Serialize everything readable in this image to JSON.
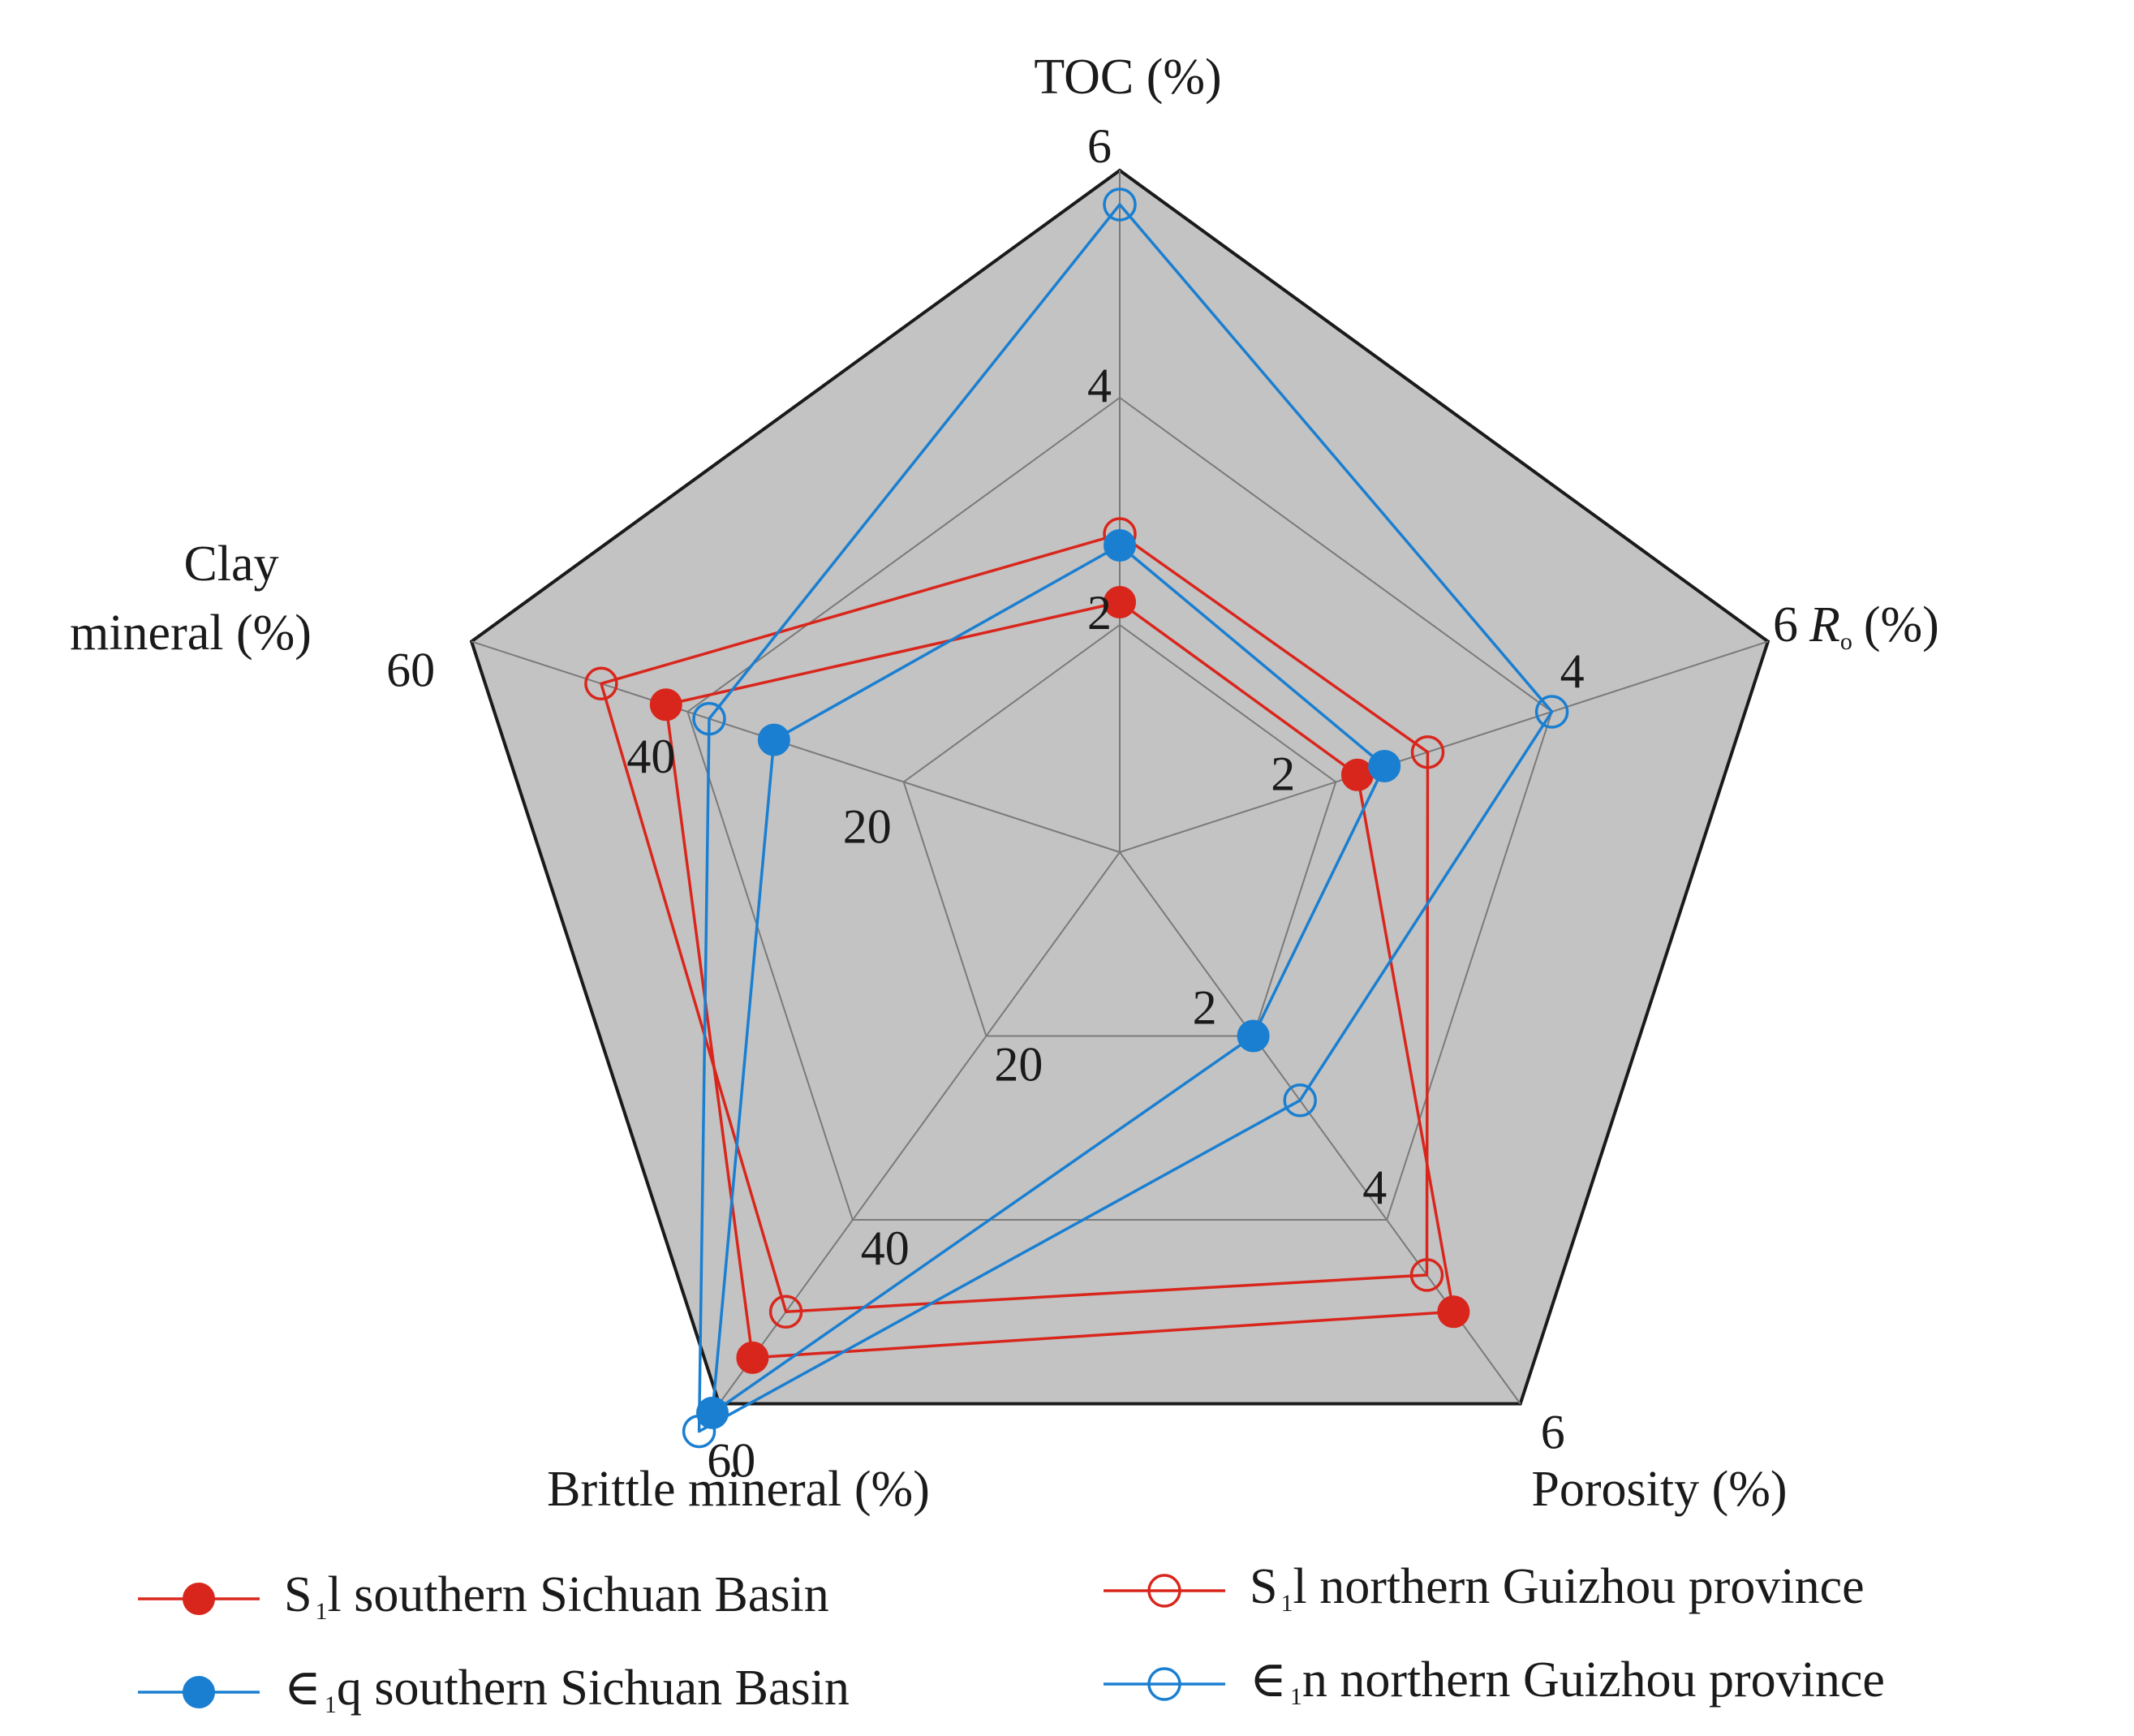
{
  "chart_data": {
    "type": "radar",
    "title": "",
    "axes": [
      {
        "key": "toc",
        "label": "TOC (%)",
        "label_lines": [
          "TOC (%)"
        ],
        "max": 6,
        "ticks": [
          2,
          4,
          6
        ],
        "tick_labels": [
          "2",
          "4",
          "6"
        ]
      },
      {
        "key": "ro",
        "label": "6 Ro (%)",
        "label_prefix": "6",
        "label_main": "R",
        "label_sub": "o",
        "label_suffix": "(%)",
        "max": 6,
        "ticks": [
          2,
          4
        ],
        "tick_labels": [
          "2",
          "4"
        ]
      },
      {
        "key": "porosity",
        "label": "Porosity (%)",
        "label_lines": [
          "Porosity (%)"
        ],
        "max": 6,
        "ticks": [
          2,
          4,
          6
        ],
        "tick_labels": [
          "2",
          "4",
          "6"
        ]
      },
      {
        "key": "brittle",
        "label": "Brittle mineral (%)",
        "label_lines": [
          "Brittle mineral (%)"
        ],
        "max": 60,
        "ticks": [
          20,
          40,
          60
        ],
        "tick_labels": [
          "20",
          "40",
          "60"
        ]
      },
      {
        "key": "clay",
        "label": "Clay mineral (%)",
        "label_lines": [
          "Clay",
          "mineral (%)"
        ],
        "max": 60,
        "ticks": [
          20,
          40,
          60
        ],
        "tick_labels": [
          "20",
          "40",
          "60"
        ]
      }
    ],
    "grid_levels": 3,
    "series": [
      {
        "name": "S1l southern Sichuan Basin",
        "name_parts": [
          "S",
          "1",
          "l southern Sichuan Basin"
        ],
        "color": "#d9261c",
        "marker": "filled",
        "values": [
          2.2,
          2.2,
          5.0,
          55.0,
          42.0
        ]
      },
      {
        "name": "S1l northern Guizhou province",
        "name_parts": [
          "S",
          "1",
          "l northern Guizhou province"
        ],
        "color": "#d9261c",
        "marker": "open",
        "values": [
          2.8,
          2.85,
          4.6,
          50.0,
          48.0
        ]
      },
      {
        "name": "∈1q southern Sichuan Basin",
        "name_parts": [
          "∈",
          "1",
          "q southern Sichuan Basin"
        ],
        "color": "#1a7fd1",
        "marker": "filled",
        "values": [
          2.7,
          2.45,
          2.0,
          61.0,
          32.0
        ]
      },
      {
        "name": "∈1n northern Guizhou province",
        "name_parts": [
          "∈",
          "1",
          "n northern Guizhou province"
        ],
        "color": "#1a7fd1",
        "marker": "open",
        "values": [
          5.7,
          4.0,
          2.7,
          63.0,
          38.0
        ]
      }
    ],
    "legend_position": "bottom",
    "background_fill": "#c3c3c3",
    "gridline_color": "#7a7a7a",
    "outline_color": "#1a1a1a"
  }
}
